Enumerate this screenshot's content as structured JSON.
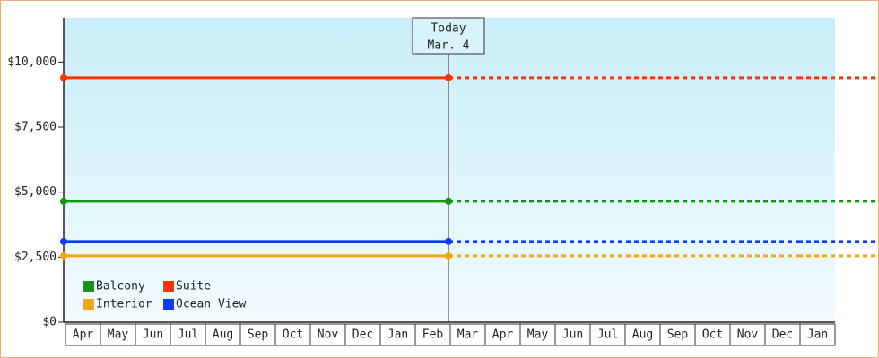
{
  "chart_data": {
    "type": "line",
    "categories": [
      "Apr",
      "May",
      "Jun",
      "Jul",
      "Aug",
      "Sep",
      "Oct",
      "Nov",
      "Dec",
      "Jan",
      "Feb",
      "Mar",
      "Apr",
      "May",
      "Jun",
      "Jul",
      "Aug",
      "Sep",
      "Oct",
      "Nov",
      "Dec",
      "Jan"
    ],
    "series": [
      {
        "name": "Balcony",
        "color": "#149414",
        "values": [
          4650,
          4650,
          4650,
          4650,
          4650,
          4650,
          4650,
          4650,
          4650,
          4650,
          4650,
          4650,
          4650,
          4650,
          4650,
          4650,
          4650,
          4650,
          4650,
          4650,
          4650,
          4650
        ]
      },
      {
        "name": "Suite",
        "color": "#ff3300",
        "values": [
          9400,
          9400,
          9400,
          9400,
          9400,
          9400,
          9400,
          9400,
          9400,
          9400,
          9400,
          9400,
          9400,
          9400,
          9400,
          9400,
          9400,
          9400,
          9400,
          9400,
          9400,
          9400
        ]
      },
      {
        "name": "Interior",
        "color": "#f5a614",
        "values": [
          2550,
          2550,
          2550,
          2550,
          2550,
          2550,
          2550,
          2550,
          2550,
          2550,
          2550,
          2550,
          2550,
          2550,
          2550,
          2550,
          2550,
          2550,
          2550,
          2550,
          2550,
          2550
        ]
      },
      {
        "name": "Ocean View",
        "color": "#0a3cff",
        "values": [
          3100,
          3100,
          3100,
          3100,
          3100,
          3100,
          3100,
          3100,
          3100,
          3100,
          3100,
          3100,
          3100,
          3100,
          3100,
          3100,
          3100,
          3100,
          3100,
          3100,
          3100,
          3100
        ]
      }
    ],
    "today": {
      "title": "Today",
      "date": "Mar. 4"
    },
    "ylim": [
      0,
      11700
    ],
    "yticks": [
      {
        "value": 0,
        "label": "$0"
      },
      {
        "value": 2500,
        "label": "$2,500"
      },
      {
        "value": 5000,
        "label": "$5,000"
      },
      {
        "value": 7500,
        "label": "$7,500"
      },
      {
        "value": 10000,
        "label": "$10,000"
      }
    ],
    "legend": "lower-left"
  }
}
